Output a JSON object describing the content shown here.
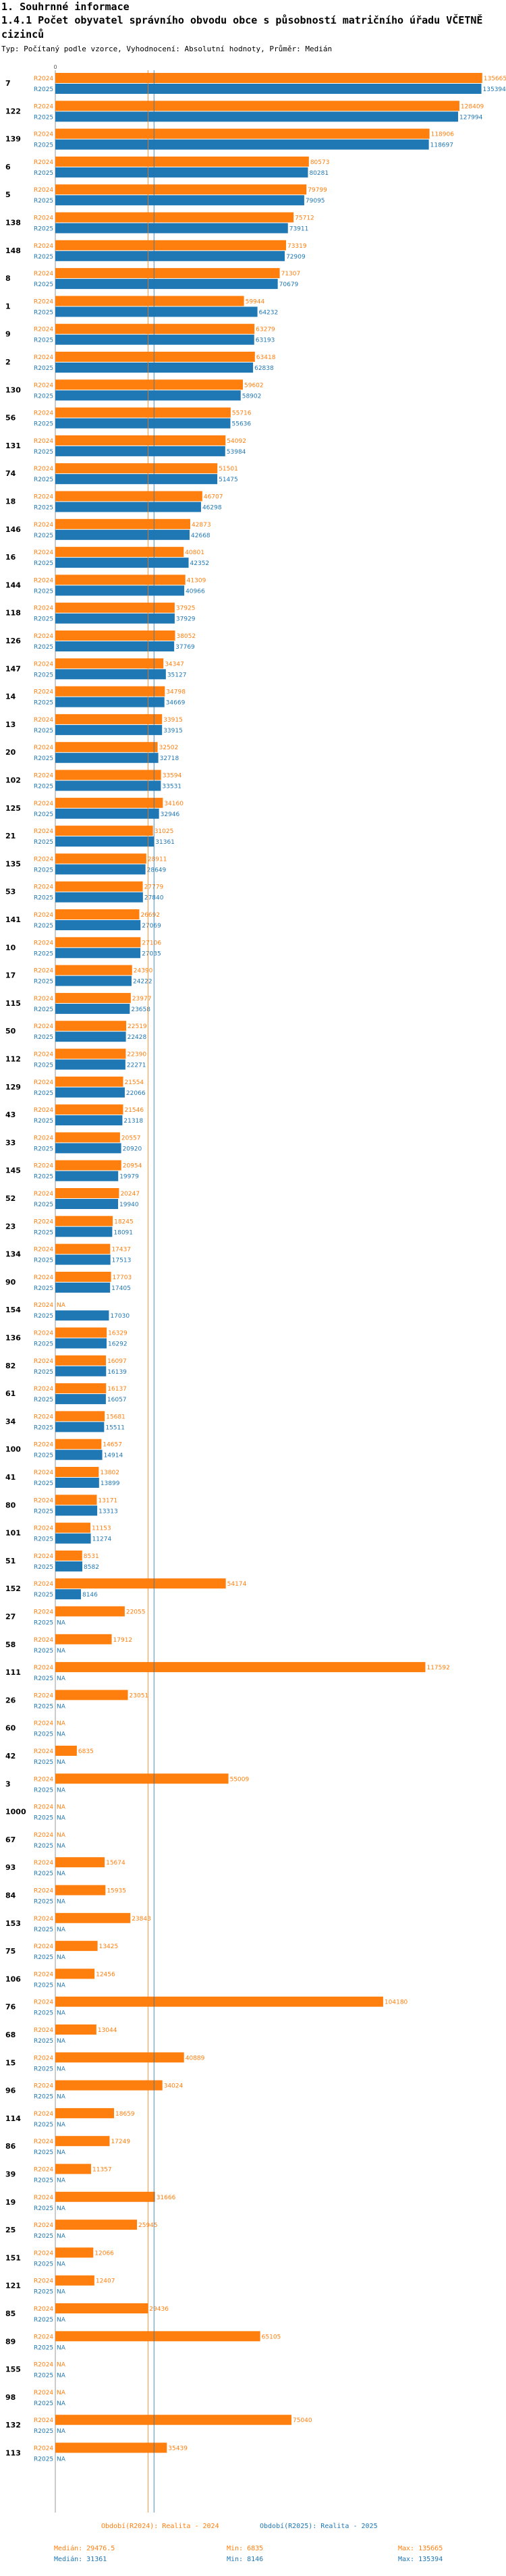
{
  "header": {
    "section": "1. Souhrnné informace",
    "title": "1.4.1 Počet obyvatel správního obvodu obce s působností matričního úřadu VČETNĚ cizinců",
    "subtitle": "Typ: Počítaný podle vzorce, Vyhodnocení: Absolutní hodnoty, Průměr: Medián"
  },
  "chart_data": {
    "type": "bar",
    "orientation": "horizontal",
    "xlim": [
      0,
      140000
    ],
    "x_ticks": [
      0
    ],
    "series": [
      {
        "name": "R2024",
        "color": "#ff7f0e"
      },
      {
        "name": "R2025",
        "color": "#1f77b4"
      }
    ],
    "categories": [
      {
        "label": "7",
        "values": [
          135665,
          135394
        ]
      },
      {
        "label": "122",
        "values": [
          128409,
          127994
        ]
      },
      {
        "label": "139",
        "values": [
          118906,
          118697
        ]
      },
      {
        "label": "6",
        "values": [
          80573,
          80281
        ]
      },
      {
        "label": "5",
        "values": [
          79799,
          79095
        ]
      },
      {
        "label": "138",
        "values": [
          75712,
          73911
        ]
      },
      {
        "label": "148",
        "values": [
          73319,
          72909
        ]
      },
      {
        "label": "8",
        "values": [
          71307,
          70679
        ]
      },
      {
        "label": "1",
        "values": [
          59944,
          64232
        ]
      },
      {
        "label": "9",
        "values": [
          63279,
          63193
        ]
      },
      {
        "label": "2",
        "values": [
          63418,
          62838
        ]
      },
      {
        "label": "130",
        "values": [
          59602,
          58902
        ]
      },
      {
        "label": "56",
        "values": [
          55716,
          55636
        ]
      },
      {
        "label": "131",
        "values": [
          54092,
          53984
        ]
      },
      {
        "label": "74",
        "values": [
          51501,
          51475
        ]
      },
      {
        "label": "18",
        "values": [
          46707,
          46298
        ]
      },
      {
        "label": "146",
        "values": [
          42873,
          42668
        ]
      },
      {
        "label": "16",
        "values": [
          40801,
          42352
        ]
      },
      {
        "label": "144",
        "values": [
          41309,
          40966
        ]
      },
      {
        "label": "118",
        "values": [
          37925,
          37929
        ]
      },
      {
        "label": "126",
        "values": [
          38052,
          37769
        ]
      },
      {
        "label": "147",
        "values": [
          34347,
          35127
        ]
      },
      {
        "label": "14",
        "values": [
          34798,
          34669
        ]
      },
      {
        "label": "13",
        "values": [
          33915,
          33915
        ]
      },
      {
        "label": "20",
        "values": [
          32502,
          32718
        ]
      },
      {
        "label": "102",
        "values": [
          33594,
          33531
        ]
      },
      {
        "label": "125",
        "values": [
          34160,
          32946
        ]
      },
      {
        "label": "21",
        "values": [
          31025,
          31361
        ]
      },
      {
        "label": "135",
        "values": [
          28911,
          28649
        ]
      },
      {
        "label": "53",
        "values": [
          27779,
          27840
        ]
      },
      {
        "label": "141",
        "values": [
          26692,
          27069
        ]
      },
      {
        "label": "10",
        "values": [
          27106,
          27035
        ]
      },
      {
        "label": "17",
        "values": [
          24390,
          24222
        ]
      },
      {
        "label": "115",
        "values": [
          23977,
          23658
        ]
      },
      {
        "label": "50",
        "values": [
          22519,
          22428
        ]
      },
      {
        "label": "112",
        "values": [
          22390,
          22271
        ]
      },
      {
        "label": "129",
        "values": [
          21554,
          22066
        ]
      },
      {
        "label": "43",
        "values": [
          21546,
          21318
        ]
      },
      {
        "label": "33",
        "values": [
          20557,
          20920
        ]
      },
      {
        "label": "145",
        "values": [
          20954,
          19979
        ]
      },
      {
        "label": "52",
        "values": [
          20247,
          19940
        ]
      },
      {
        "label": "23",
        "values": [
          18245,
          18091
        ]
      },
      {
        "label": "134",
        "values": [
          17437,
          17513
        ]
      },
      {
        "label": "90",
        "values": [
          17703,
          17405
        ]
      },
      {
        "label": "154",
        "values": [
          null,
          17030
        ]
      },
      {
        "label": "136",
        "values": [
          16329,
          16292
        ]
      },
      {
        "label": "82",
        "values": [
          16097,
          16139
        ]
      },
      {
        "label": "61",
        "values": [
          16137,
          16057
        ]
      },
      {
        "label": "34",
        "values": [
          15681,
          15511
        ]
      },
      {
        "label": "100",
        "values": [
          14657,
          14914
        ]
      },
      {
        "label": "41",
        "values": [
          13802,
          13899
        ]
      },
      {
        "label": "80",
        "values": [
          13171,
          13313
        ]
      },
      {
        "label": "101",
        "values": [
          11153,
          11274
        ]
      },
      {
        "label": "51",
        "values": [
          8531,
          8582
        ]
      },
      {
        "label": "152",
        "values": [
          54174,
          8146
        ]
      },
      {
        "label": "27",
        "values": [
          22055,
          null
        ]
      },
      {
        "label": "58",
        "values": [
          17912,
          null
        ]
      },
      {
        "label": "111",
        "values": [
          117592,
          null
        ]
      },
      {
        "label": "26",
        "values": [
          23051,
          null
        ]
      },
      {
        "label": "60",
        "values": [
          null,
          null
        ]
      },
      {
        "label": "42",
        "values": [
          6835,
          null
        ]
      },
      {
        "label": "3",
        "values": [
          55009,
          null
        ]
      },
      {
        "label": "1000",
        "values": [
          null,
          null
        ]
      },
      {
        "label": "67",
        "values": [
          null,
          null
        ]
      },
      {
        "label": "93",
        "values": [
          15674,
          null
        ]
      },
      {
        "label": "84",
        "values": [
          15935,
          null
        ]
      },
      {
        "label": "153",
        "values": [
          23843,
          null
        ]
      },
      {
        "label": "75",
        "values": [
          13425,
          null
        ]
      },
      {
        "label": "106",
        "values": [
          12456,
          null
        ]
      },
      {
        "label": "76",
        "values": [
          104180,
          null
        ]
      },
      {
        "label": "68",
        "values": [
          13044,
          null
        ]
      },
      {
        "label": "15",
        "values": [
          40889,
          null
        ]
      },
      {
        "label": "96",
        "values": [
          34024,
          null
        ]
      },
      {
        "label": "114",
        "values": [
          18659,
          null
        ]
      },
      {
        "label": "86",
        "values": [
          17249,
          null
        ]
      },
      {
        "label": "39",
        "values": [
          11357,
          null
        ]
      },
      {
        "label": "19",
        "values": [
          31666,
          null
        ]
      },
      {
        "label": "25",
        "values": [
          25945,
          null
        ]
      },
      {
        "label": "151",
        "values": [
          12066,
          null
        ]
      },
      {
        "label": "121",
        "values": [
          12407,
          null
        ]
      },
      {
        "label": "85",
        "values": [
          29436,
          null
        ]
      },
      {
        "label": "89",
        "values": [
          65105,
          null
        ]
      },
      {
        "label": "155",
        "values": [
          null,
          null
        ]
      },
      {
        "label": "98",
        "values": [
          null,
          null
        ]
      },
      {
        "label": "132",
        "values": [
          75040,
          null
        ]
      },
      {
        "label": "113",
        "values": [
          35439,
          null
        ]
      }
    ],
    "na_label": "NA",
    "reference_lines": [
      {
        "series": "R2024",
        "label": "Medián",
        "value": 29476.5
      },
      {
        "series": "R2025",
        "label": "Medián",
        "value": 31361
      }
    ]
  },
  "footer": {
    "left_title": "Období(R2024): Realita - 2024",
    "right_title": "Období(R2025): Realita - 2025",
    "left_median": "Medián: 29476.5",
    "left_min": "Min: 6835",
    "left_max": "Max: 135665",
    "right_median": "Medián: 31361",
    "right_min": "Min: 8146",
    "right_max": "Max: 135394"
  }
}
